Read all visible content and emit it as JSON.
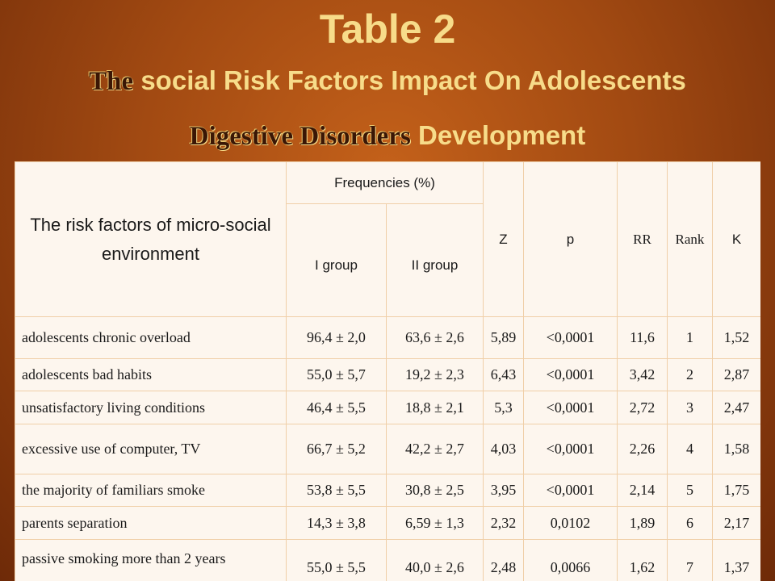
{
  "title": {
    "line1": "Table 2",
    "line2_emph": "The",
    "line2_rest": "social Risk Factors Impact On Adolescents",
    "line3_emph": "Digestive Disorders",
    "line3_rest": "Development"
  },
  "table": {
    "header": {
      "risk_factors": "The risk factors of micro-social environment",
      "frequencies": "Frequencies (%)",
      "group1": "I group",
      "group2": "II group",
      "z": "Z",
      "p": "p",
      "rr": "RR",
      "rank": "Rank",
      "k": "K"
    },
    "rows": [
      {
        "factor": "adolescents chronic overload",
        "g1": "96,4 ± 2,0",
        "g2": "63,6 ± 2,6",
        "z": "5,89",
        "p": "<0,0001",
        "rr": "11,6",
        "rank": "1",
        "k": "1,52"
      },
      {
        "factor": "adolescents bad habits",
        "g1": "55,0 ± 5,7",
        "g2": "19,2 ± 2,3",
        "z": "6,43",
        "p": "<0,0001",
        "rr": "3,42",
        "rank": "2",
        "k": "2,87"
      },
      {
        "factor": "unsatisfactory living   conditions",
        "g1": "46,4 ± 5,5",
        "g2": "18,8 ± 2,1",
        "z": "5,3",
        "p": "<0,0001",
        "rr": "2,72",
        "rank": "3",
        "k": "2,47"
      },
      {
        "factor": "excessive use of computer, TV",
        "g1": "66,7 ± 5,2",
        "g2": "42,2 ± 2,7",
        "z": "4,03",
        "p": "<0,0001",
        "rr": "2,26",
        "rank": "4",
        "k": "1,58"
      },
      {
        "factor": "the majority of familiars smoke",
        "g1": "53,8 ± 5,5",
        "g2": "30,8 ± 2,5",
        "z": "3,95",
        "p": "<0,0001",
        "rr": "2,14",
        "rank": "5",
        "k": "1,75"
      },
      {
        "factor": "parents separation",
        "g1": "14,3 ± 3,8",
        "g2": "6,59 ± 1,3",
        "z": "2,32",
        "p": "0,0102",
        "rr": "1,89",
        "rank": "6",
        "k": "2,17"
      },
      {
        "factor": "passive smoking more than 2 years",
        "g1": "55,0 ± 5,5",
        "g2": "40,0 ± 2,6",
        "z": "2,48",
        "p": "0,0066",
        "rr": "1,62",
        "rank": "7",
        "k": "1,37"
      }
    ]
  }
}
